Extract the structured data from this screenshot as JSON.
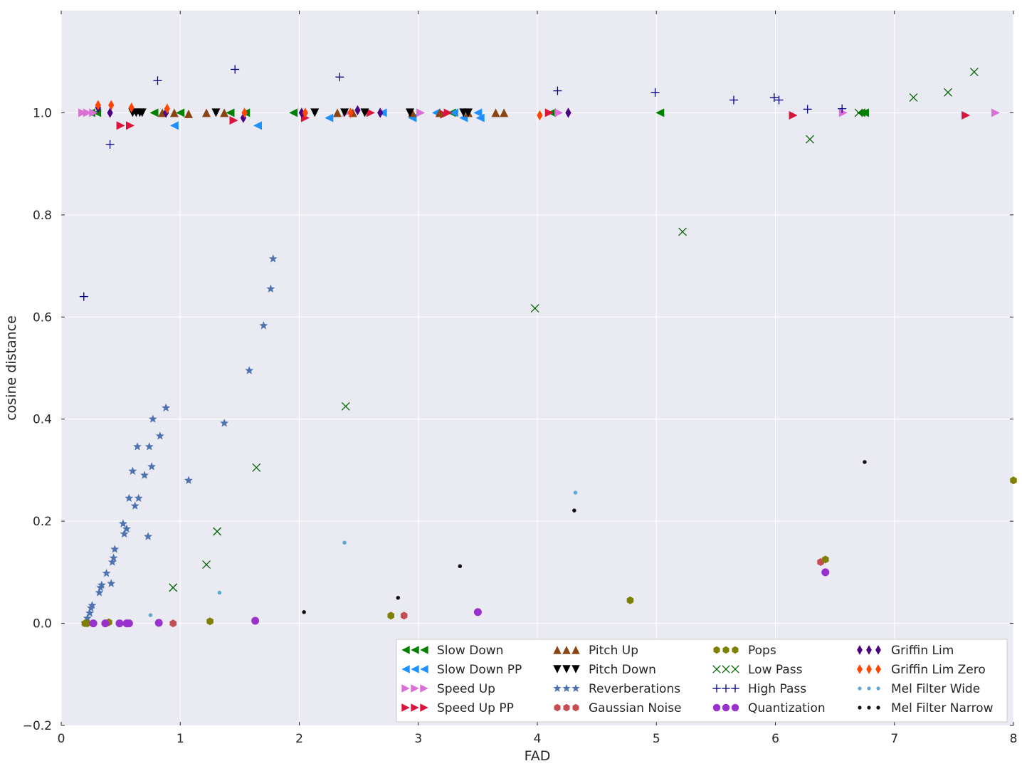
{
  "chart_data": {
    "type": "scatter",
    "title": "",
    "xlabel": "FAD",
    "ylabel": "cosine distance",
    "xlim": [
      0,
      8
    ],
    "ylim": [
      -0.2,
      1.2
    ],
    "xticks": [
      0,
      1,
      2,
      3,
      4,
      5,
      6,
      7,
      8
    ],
    "xtick_labels": [
      "0",
      "1",
      "2",
      "3",
      "4",
      "5",
      "6",
      "7",
      "8"
    ],
    "yticks": [
      -0.2,
      0.0,
      0.2,
      0.4,
      0.6,
      0.8,
      1.0
    ],
    "ytick_labels": [
      "−0.2",
      "0.0",
      "0.2",
      "0.4",
      "0.6",
      "0.8",
      "1.0"
    ],
    "grid": true,
    "legend_placement": "lower-right",
    "legend_columns": 4,
    "series": [
      {
        "name": "Slow Down",
        "marker": "triangle-left",
        "color": "#008000",
        "points": [
          [
            0.25,
            1.0
          ],
          [
            0.3,
            1.0
          ],
          [
            0.78,
            1.0
          ],
          [
            1.0,
            1.0
          ],
          [
            1.42,
            1.0
          ],
          [
            1.55,
            1.0
          ],
          [
            1.95,
            1.0
          ],
          [
            3.28,
            1.0
          ],
          [
            4.12,
            1.0
          ],
          [
            5.03,
            1.0
          ],
          [
            6.72,
            1.0
          ],
          [
            6.75,
            1.0
          ]
        ]
      },
      {
        "name": "Slow Down PP",
        "marker": "triangle-left",
        "color": "#1e90ff",
        "points": [
          [
            0.95,
            0.975
          ],
          [
            1.65,
            0.975
          ],
          [
            2.25,
            0.99
          ],
          [
            2.7,
            1.0
          ],
          [
            2.95,
            0.99
          ],
          [
            3.15,
            1.0
          ],
          [
            3.3,
            1.0
          ],
          [
            3.38,
            0.99
          ],
          [
            3.5,
            1.0
          ],
          [
            3.52,
            0.99
          ]
        ]
      },
      {
        "name": "Speed Up",
        "marker": "triangle-right",
        "color": "#da70d6",
        "points": [
          [
            0.18,
            1.0
          ],
          [
            0.22,
            1.0
          ],
          [
            0.27,
            1.0
          ],
          [
            2.4,
            1.0
          ],
          [
            3.02,
            1.0
          ],
          [
            4.18,
            1.0
          ],
          [
            6.57,
            1.0
          ],
          [
            7.85,
            1.0
          ]
        ]
      },
      {
        "name": "Speed Up PP",
        "marker": "triangle-right",
        "color": "#dc143c",
        "points": [
          [
            0.5,
            0.975
          ],
          [
            0.58,
            0.975
          ],
          [
            1.45,
            0.985
          ],
          [
            2.05,
            0.99
          ],
          [
            2.6,
            1.0
          ],
          [
            3.22,
            0.997
          ],
          [
            3.25,
            1.0
          ],
          [
            4.1,
            1.0
          ],
          [
            6.15,
            0.995
          ],
          [
            7.6,
            0.995
          ]
        ]
      },
      {
        "name": "Pitch Up",
        "marker": "triangle-up",
        "color": "#8b4513",
        "points": [
          [
            0.85,
            1.0
          ],
          [
            0.95,
            1.0
          ],
          [
            1.07,
            0.998
          ],
          [
            1.22,
            1.0
          ],
          [
            1.37,
            1.0
          ],
          [
            2.32,
            1.0
          ],
          [
            2.45,
            1.0
          ],
          [
            2.95,
            1.0
          ],
          [
            3.18,
            1.0
          ],
          [
            3.42,
            1.0
          ],
          [
            3.65,
            1.0
          ],
          [
            3.72,
            1.0
          ]
        ]
      },
      {
        "name": "Pitch Down",
        "marker": "triangle-down",
        "color": "#000000",
        "points": [
          [
            0.6,
            1.0
          ],
          [
            0.63,
            1.0
          ],
          [
            0.66,
            1.0
          ],
          [
            0.68,
            1.0
          ],
          [
            1.3,
            1.0
          ],
          [
            2.13,
            1.0
          ],
          [
            2.38,
            1.0
          ],
          [
            2.55,
            1.0
          ],
          [
            2.93,
            1.0
          ],
          [
            3.38,
            1.0
          ],
          [
            3.42,
            1.0
          ]
        ]
      },
      {
        "name": "Reverberations",
        "marker": "star",
        "color": "#4c72b0",
        "points": [
          [
            0.2,
            0.0
          ],
          [
            0.22,
            0.01
          ],
          [
            0.24,
            0.02
          ],
          [
            0.25,
            0.03
          ],
          [
            0.26,
            0.035
          ],
          [
            0.32,
            0.06
          ],
          [
            0.33,
            0.07
          ],
          [
            0.34,
            0.075
          ],
          [
            0.38,
            0.098
          ],
          [
            0.42,
            0.078
          ],
          [
            0.43,
            0.12
          ],
          [
            0.44,
            0.128
          ],
          [
            0.45,
            0.145
          ],
          [
            0.52,
            0.195
          ],
          [
            0.53,
            0.175
          ],
          [
            0.55,
            0.185
          ],
          [
            0.57,
            0.245
          ],
          [
            0.6,
            0.298
          ],
          [
            0.62,
            0.23
          ],
          [
            0.64,
            0.346
          ],
          [
            0.65,
            0.245
          ],
          [
            0.7,
            0.29
          ],
          [
            0.73,
            0.17
          ],
          [
            0.74,
            0.346
          ],
          [
            0.76,
            0.307
          ],
          [
            0.77,
            0.4
          ],
          [
            0.83,
            0.367
          ],
          [
            0.88,
            0.422
          ],
          [
            1.07,
            0.28
          ],
          [
            1.37,
            0.392
          ],
          [
            1.58,
            0.495
          ],
          [
            1.7,
            0.583
          ],
          [
            1.76,
            0.655
          ],
          [
            1.78,
            0.714
          ]
        ]
      },
      {
        "name": "Gaussian Noise",
        "marker": "hexagon",
        "color": "#c44e52",
        "points": [
          [
            0.37,
            0.0
          ],
          [
            0.94,
            0.0
          ],
          [
            2.88,
            0.015
          ],
          [
            6.38,
            0.12
          ]
        ]
      },
      {
        "name": "Pops",
        "marker": "hexagon",
        "color": "#808000",
        "points": [
          [
            0.2,
            0.0
          ],
          [
            0.22,
            0.0
          ],
          [
            0.4,
            0.002
          ],
          [
            1.25,
            0.004
          ],
          [
            2.77,
            0.015
          ],
          [
            4.78,
            0.045
          ],
          [
            6.42,
            0.125
          ],
          [
            8.0,
            0.28
          ]
        ]
      },
      {
        "name": "Low Pass",
        "marker": "x",
        "color": "#006400",
        "points": [
          [
            0.94,
            0.07
          ],
          [
            1.22,
            0.115
          ],
          [
            1.31,
            0.18
          ],
          [
            1.64,
            0.305
          ],
          [
            2.39,
            0.425
          ],
          [
            3.98,
            0.617
          ],
          [
            5.22,
            0.767
          ],
          [
            6.29,
            0.948
          ],
          [
            6.7,
            1.0
          ],
          [
            7.16,
            1.03
          ],
          [
            7.45,
            1.04
          ],
          [
            7.67,
            1.08
          ]
        ]
      },
      {
        "name": "High Pass",
        "marker": "plus",
        "color": "#000080",
        "points": [
          [
            0.19,
            0.64
          ],
          [
            0.41,
            0.938
          ],
          [
            0.81,
            1.063
          ],
          [
            1.46,
            1.085
          ],
          [
            2.34,
            1.07
          ],
          [
            4.17,
            1.043
          ],
          [
            4.99,
            1.04
          ],
          [
            5.65,
            1.025
          ],
          [
            5.99,
            1.03
          ],
          [
            6.03,
            1.025
          ],
          [
            6.27,
            1.007
          ],
          [
            6.56,
            1.008
          ]
        ]
      },
      {
        "name": "Quantization",
        "marker": "circle",
        "color": "#9932cc",
        "points": [
          [
            0.27,
            0.0
          ],
          [
            0.37,
            0.0
          ],
          [
            0.49,
            0.0
          ],
          [
            0.55,
            0.0
          ],
          [
            0.57,
            0.0
          ],
          [
            0.82,
            0.001
          ],
          [
            1.63,
            0.005
          ],
          [
            3.5,
            0.022
          ],
          [
            6.42,
            0.1
          ]
        ]
      },
      {
        "name": "Griffin Lim",
        "marker": "diamond",
        "color": "#4b0082",
        "points": [
          [
            0.31,
            1.01
          ],
          [
            0.41,
            1.0
          ],
          [
            0.88,
            1.0
          ],
          [
            1.53,
            0.99
          ],
          [
            2.02,
            1.0
          ],
          [
            2.49,
            1.005
          ],
          [
            2.68,
            1.0
          ],
          [
            4.26,
            1.0
          ]
        ]
      },
      {
        "name": "Griffin Lim Zero",
        "marker": "diamond",
        "color": "#ff4500",
        "points": [
          [
            0.31,
            1.015
          ],
          [
            0.42,
            1.015
          ],
          [
            0.59,
            1.01
          ],
          [
            0.89,
            1.008
          ],
          [
            1.54,
            1.0
          ],
          [
            2.05,
            1.0
          ],
          [
            2.43,
            1.0
          ],
          [
            4.02,
            0.995
          ]
        ]
      },
      {
        "name": "Mel Filter Wide",
        "marker": "dot",
        "color": "#5fa8d3",
        "points": [
          [
            0.75,
            0.016
          ],
          [
            1.33,
            0.06
          ],
          [
            2.38,
            0.158
          ],
          [
            4.32,
            0.256
          ]
        ]
      },
      {
        "name": "Mel Filter Narrow",
        "marker": "dot",
        "color": "#111111",
        "points": [
          [
            2.04,
            0.022
          ],
          [
            2.83,
            0.05
          ],
          [
            3.35,
            0.112
          ],
          [
            4.31,
            0.221
          ],
          [
            6.75,
            0.316
          ]
        ]
      }
    ]
  }
}
